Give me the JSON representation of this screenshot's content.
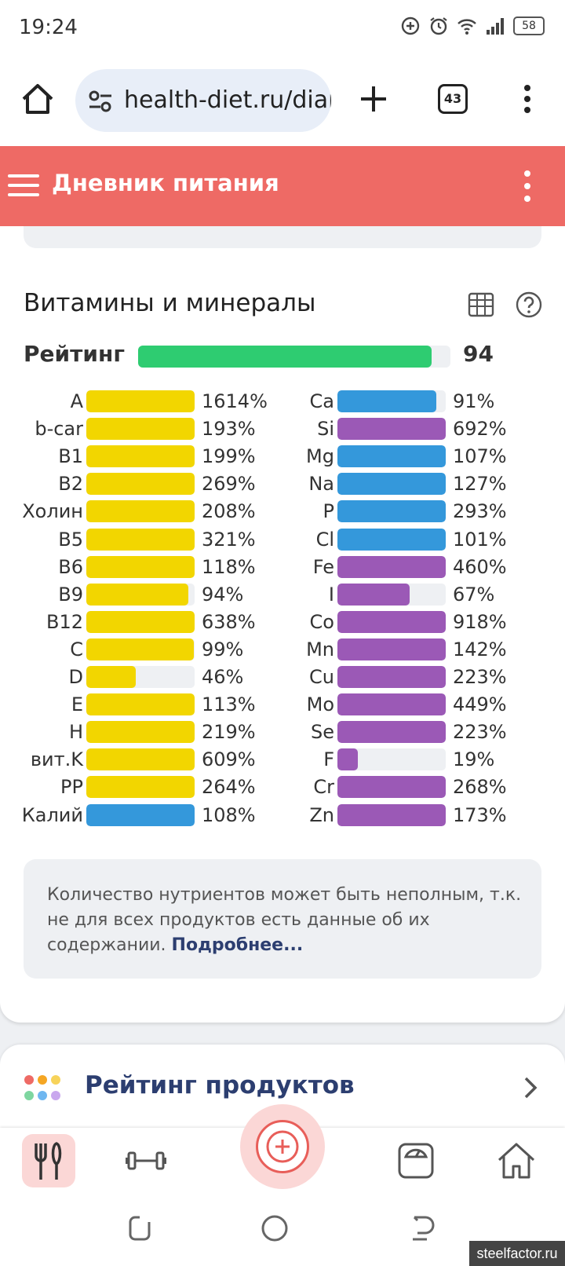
{
  "status_bar": {
    "time": "19:24",
    "battery": "58"
  },
  "browser": {
    "url": "health-diet.ru/diar",
    "tab_count": "43"
  },
  "header": {
    "title": "Дневник питания"
  },
  "vitamins": {
    "title": "Витамины и минералы",
    "rating": {
      "label": "Рейтинг",
      "value": "94",
      "fill_percent": 94
    },
    "left": [
      {
        "name": "A",
        "pct": "1614%",
        "color": "#f2d600",
        "fill": 100
      },
      {
        "name": "b-car",
        "pct": "193%",
        "color": "#f2d600",
        "fill": 100
      },
      {
        "name": "B1",
        "pct": "199%",
        "color": "#f2d600",
        "fill": 100
      },
      {
        "name": "B2",
        "pct": "269%",
        "color": "#f2d600",
        "fill": 100
      },
      {
        "name": "Холин",
        "pct": "208%",
        "color": "#f2d600",
        "fill": 100
      },
      {
        "name": "B5",
        "pct": "321%",
        "color": "#f2d600",
        "fill": 100
      },
      {
        "name": "B6",
        "pct": "118%",
        "color": "#f2d600",
        "fill": 100
      },
      {
        "name": "B9",
        "pct": "94%",
        "color": "#f2d600",
        "fill": 94
      },
      {
        "name": "B12",
        "pct": "638%",
        "color": "#f2d600",
        "fill": 100
      },
      {
        "name": "C",
        "pct": "99%",
        "color": "#f2d600",
        "fill": 99
      },
      {
        "name": "D",
        "pct": "46%",
        "color": "#f2d600",
        "fill": 46
      },
      {
        "name": "E",
        "pct": "113%",
        "color": "#f2d600",
        "fill": 100
      },
      {
        "name": "H",
        "pct": "219%",
        "color": "#f2d600",
        "fill": 100
      },
      {
        "name": "вит.K",
        "pct": "609%",
        "color": "#f2d600",
        "fill": 100
      },
      {
        "name": "PP",
        "pct": "264%",
        "color": "#f2d600",
        "fill": 100
      },
      {
        "name": "Калий",
        "pct": "108%",
        "color": "#3498db",
        "fill": 100
      }
    ],
    "right": [
      {
        "name": "Ca",
        "pct": "91%",
        "color": "#3498db",
        "fill": 91
      },
      {
        "name": "Si",
        "pct": "692%",
        "color": "#9b59b6",
        "fill": 100
      },
      {
        "name": "Mg",
        "pct": "107%",
        "color": "#3498db",
        "fill": 100
      },
      {
        "name": "Na",
        "pct": "127%",
        "color": "#3498db",
        "fill": 100
      },
      {
        "name": "P",
        "pct": "293%",
        "color": "#3498db",
        "fill": 100
      },
      {
        "name": "Cl",
        "pct": "101%",
        "color": "#3498db",
        "fill": 100
      },
      {
        "name": "Fe",
        "pct": "460%",
        "color": "#9b59b6",
        "fill": 100
      },
      {
        "name": "I",
        "pct": "67%",
        "color": "#9b59b6",
        "fill": 67
      },
      {
        "name": "Co",
        "pct": "918%",
        "color": "#9b59b6",
        "fill": 100
      },
      {
        "name": "Mn",
        "pct": "142%",
        "color": "#9b59b6",
        "fill": 100
      },
      {
        "name": "Cu",
        "pct": "223%",
        "color": "#9b59b6",
        "fill": 100
      },
      {
        "name": "Mo",
        "pct": "449%",
        "color": "#9b59b6",
        "fill": 100
      },
      {
        "name": "Se",
        "pct": "223%",
        "color": "#9b59b6",
        "fill": 100
      },
      {
        "name": "F",
        "pct": "19%",
        "color": "#9b59b6",
        "fill": 19
      },
      {
        "name": "Cr",
        "pct": "268%",
        "color": "#9b59b6",
        "fill": 100
      },
      {
        "name": "Zn",
        "pct": "173%",
        "color": "#9b59b6",
        "fill": 100
      }
    ],
    "note_text": "Количество нутриентов может быть неполным, т.к. не для всех продуктов есть данные об их содержании. ",
    "note_link": "Подробнее..."
  },
  "products": {
    "title": "Рейтинг продуктов"
  },
  "bottom_nav": {
    "items": [
      "diary-icon",
      "workout-icon",
      "add-icon",
      "scale-icon",
      "home-icon"
    ]
  },
  "colors": {
    "accent": "#ee6a65",
    "rating_green": "#2ecc71",
    "vitamin_yellow": "#f2d600",
    "mineral_blue": "#3498db",
    "mineral_purple": "#9b59b6"
  },
  "watermark": "steelfactor.ru"
}
